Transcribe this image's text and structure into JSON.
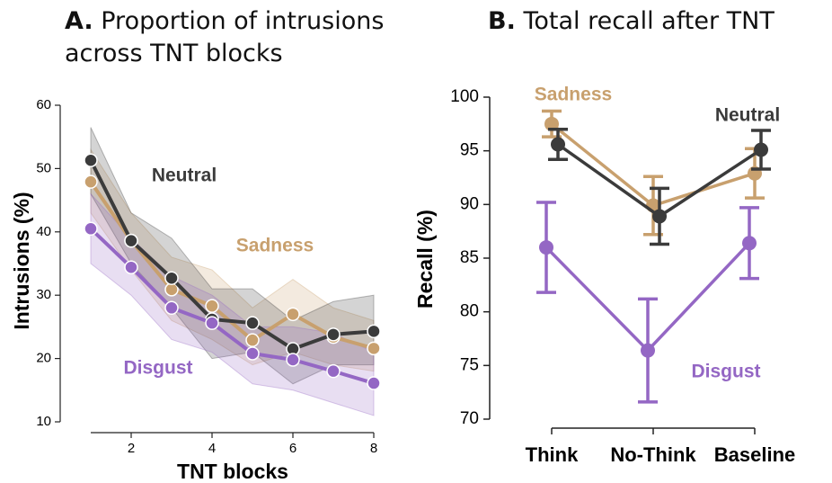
{
  "chart_data": [
    {
      "type": "line",
      "label": "A.",
      "title": "Proportion of intrusions across TNT blocks",
      "xlabel": "TNT blocks",
      "ylabel": "Intrusions (%)",
      "x": [
        1,
        2,
        3,
        4,
        5,
        6,
        7,
        8
      ],
      "xlim": [
        1,
        8
      ],
      "xticks": [
        2,
        4,
        6,
        8
      ],
      "ylim": [
        10,
        60
      ],
      "yticks": [
        10,
        20,
        30,
        40,
        50,
        60
      ],
      "series": [
        {
          "name": "Sadness",
          "color": "#c8a06e",
          "values": [
            47.9,
            38.6,
            30.9,
            28.3,
            22.9,
            27.0,
            23.4,
            21.6
          ],
          "lower": [
            43,
            34,
            26,
            23,
            19,
            21,
            19,
            18
          ],
          "upper": [
            53,
            43,
            36,
            34,
            28,
            32.5,
            28,
            26
          ]
        },
        {
          "name": "Neutral",
          "color": "#3b3b3b",
          "values": [
            51.3,
            38.6,
            32.7,
            26.2,
            25.6,
            21.5,
            23.8,
            24.3
          ],
          "lower": [
            46,
            35,
            28,
            20,
            21,
            16,
            19,
            19
          ],
          "upper": [
            56.5,
            43,
            39,
            31,
            31,
            26,
            29,
            30
          ]
        },
        {
          "name": "Disgust",
          "color": "#9467c4",
          "values": [
            40.5,
            34.4,
            28.0,
            25.6,
            20.8,
            19.8,
            18.0,
            16.1
          ],
          "lower": [
            35,
            30,
            23,
            21,
            16,
            15,
            13,
            11
          ],
          "upper": [
            46,
            39,
            33,
            30,
            25,
            25,
            24,
            21
          ]
        }
      ]
    },
    {
      "type": "pointplot",
      "label": "B.",
      "title": "Total recall after TNT",
      "ylabel": "Recall (%)",
      "categories": [
        "Think",
        "No-Think",
        "Baseline"
      ],
      "ylim": [
        70,
        100
      ],
      "yticks": [
        70,
        75,
        80,
        85,
        90,
        95,
        100
      ],
      "series": [
        {
          "name": "Sadness",
          "color": "#c8a06e",
          "values": [
            97.5,
            89.9,
            92.9
          ],
          "errors": [
            1.2,
            2.7,
            2.3
          ]
        },
        {
          "name": "Neutral",
          "color": "#3b3b3b",
          "values": [
            95.6,
            88.9,
            95.1
          ],
          "errors": [
            1.4,
            2.6,
            1.8
          ]
        },
        {
          "name": "Disgust",
          "color": "#9467c4",
          "values": [
            86.0,
            76.4,
            86.4
          ],
          "errors": [
            4.2,
            4.8,
            3.3
          ]
        }
      ]
    }
  ]
}
